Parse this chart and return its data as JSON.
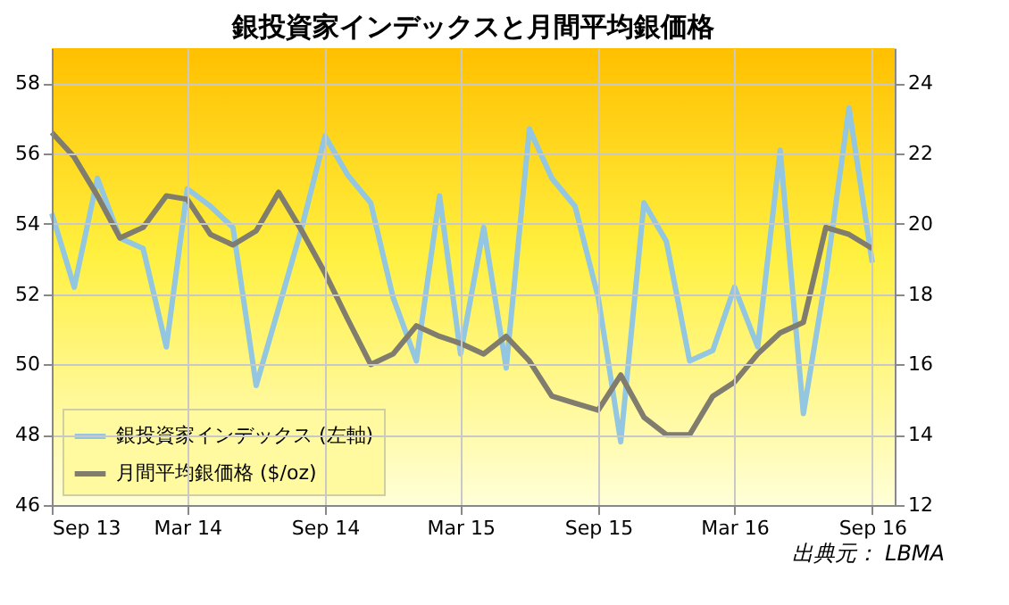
{
  "chart_data": {
    "type": "line",
    "title": "銀投資家インデックスと月間平均銀価格",
    "x": [
      "2013-09",
      "2013-10",
      "2013-11",
      "2013-12",
      "2014-01",
      "2014-02",
      "2014-03",
      "2014-04",
      "2014-05",
      "2014-06",
      "2014-07",
      "2014-08",
      "2014-09",
      "2014-10",
      "2014-11",
      "2014-12",
      "2015-01",
      "2015-02",
      "2015-03",
      "2015-04",
      "2015-05",
      "2015-06",
      "2015-07",
      "2015-08",
      "2015-09",
      "2015-10",
      "2015-11",
      "2015-12",
      "2016-01",
      "2016-02",
      "2016-03",
      "2016-04",
      "2016-05",
      "2016-06",
      "2016-07",
      "2016-08",
      "2016-09"
    ],
    "series": [
      {
        "name": "銀投資家インデックス (左軸)",
        "color": "#93c6e0",
        "values": [
          54.3,
          52.2,
          55.3,
          53.6,
          53.3,
          50.5,
          55.0,
          54.5,
          53.9,
          49.4,
          51.6,
          53.9,
          56.5,
          55.4,
          54.6,
          51.9,
          50.1,
          54.8,
          50.3,
          53.9,
          49.9,
          56.7,
          55.3,
          54.5,
          51.9,
          47.8,
          54.6,
          53.5,
          50.1,
          50.4,
          52.2,
          50.5,
          56.1,
          48.6,
          52.5,
          57.3,
          52.9
        ]
      },
      {
        "name": "月間平均銀価格 ($/oz)",
        "color": "#807c6e",
        "axis": "y2",
        "values": [
          22.6,
          21.9,
          20.8,
          19.6,
          19.9,
          20.8,
          20.7,
          19.7,
          19.4,
          19.8,
          20.9,
          19.8,
          18.6,
          17.3,
          16.0,
          16.3,
          17.1,
          16.8,
          16.6,
          16.3,
          16.8,
          16.1,
          15.1,
          14.9,
          14.7,
          15.7,
          14.5,
          14.0,
          14.0,
          15.1,
          15.5,
          16.3,
          16.9,
          17.2,
          19.9,
          19.7,
          19.3
        ]
      }
    ],
    "xlim": [
      "2013-09",
      "2016-10"
    ],
    "xticks": [
      {
        "value": "2013-09",
        "label": "Sep 13"
      },
      {
        "value": "2014-03",
        "label": "Mar 14"
      },
      {
        "value": "2014-09",
        "label": "Sep 14"
      },
      {
        "value": "2015-03",
        "label": "Mar 15"
      },
      {
        "value": "2015-09",
        "label": "Sep 15"
      },
      {
        "value": "2016-03",
        "label": "Mar 16"
      },
      {
        "value": "2016-09",
        "label": "Sep 16"
      }
    ],
    "ylim": [
      46,
      59
    ],
    "yticks": [
      46,
      48,
      50,
      52,
      54,
      56,
      58
    ],
    "y2lim": [
      12,
      25
    ],
    "y2ticks": [
      12,
      14,
      16,
      18,
      20,
      22,
      24
    ],
    "grid": true,
    "legend": "bottom left",
    "marker": "none",
    "line_style": "solid",
    "annotations": [
      "出典元： LBMA"
    ]
  }
}
